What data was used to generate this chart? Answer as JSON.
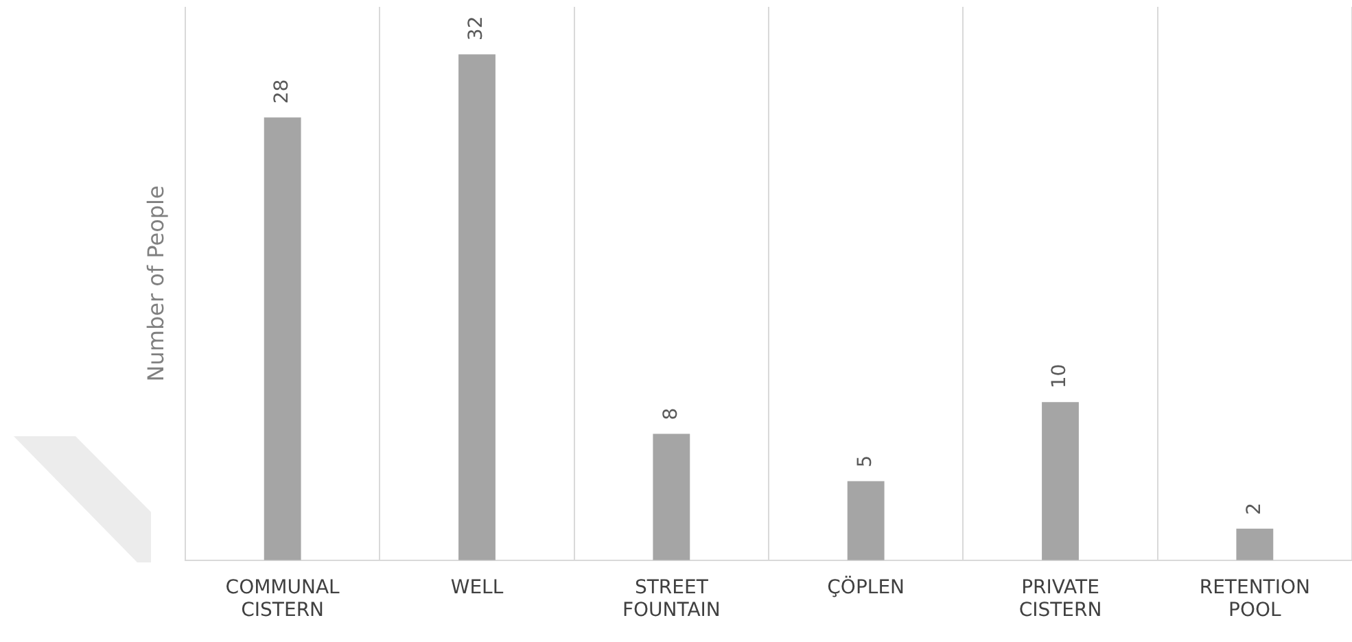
{
  "chart_data": {
    "type": "bar",
    "ylabel": "Number of People",
    "categories": [
      "COMMUNAL CISTERN",
      "WELL",
      "STREET FOUNTAIN",
      "ÇÖPLEN",
      "PRIVATE CISTERN",
      "RETENTION POOL"
    ],
    "values": [
      28,
      32,
      8,
      5,
      10,
      2
    ],
    "color": "#a5a5a5",
    "data_labels": true,
    "grid": "x",
    "legend": false
  }
}
